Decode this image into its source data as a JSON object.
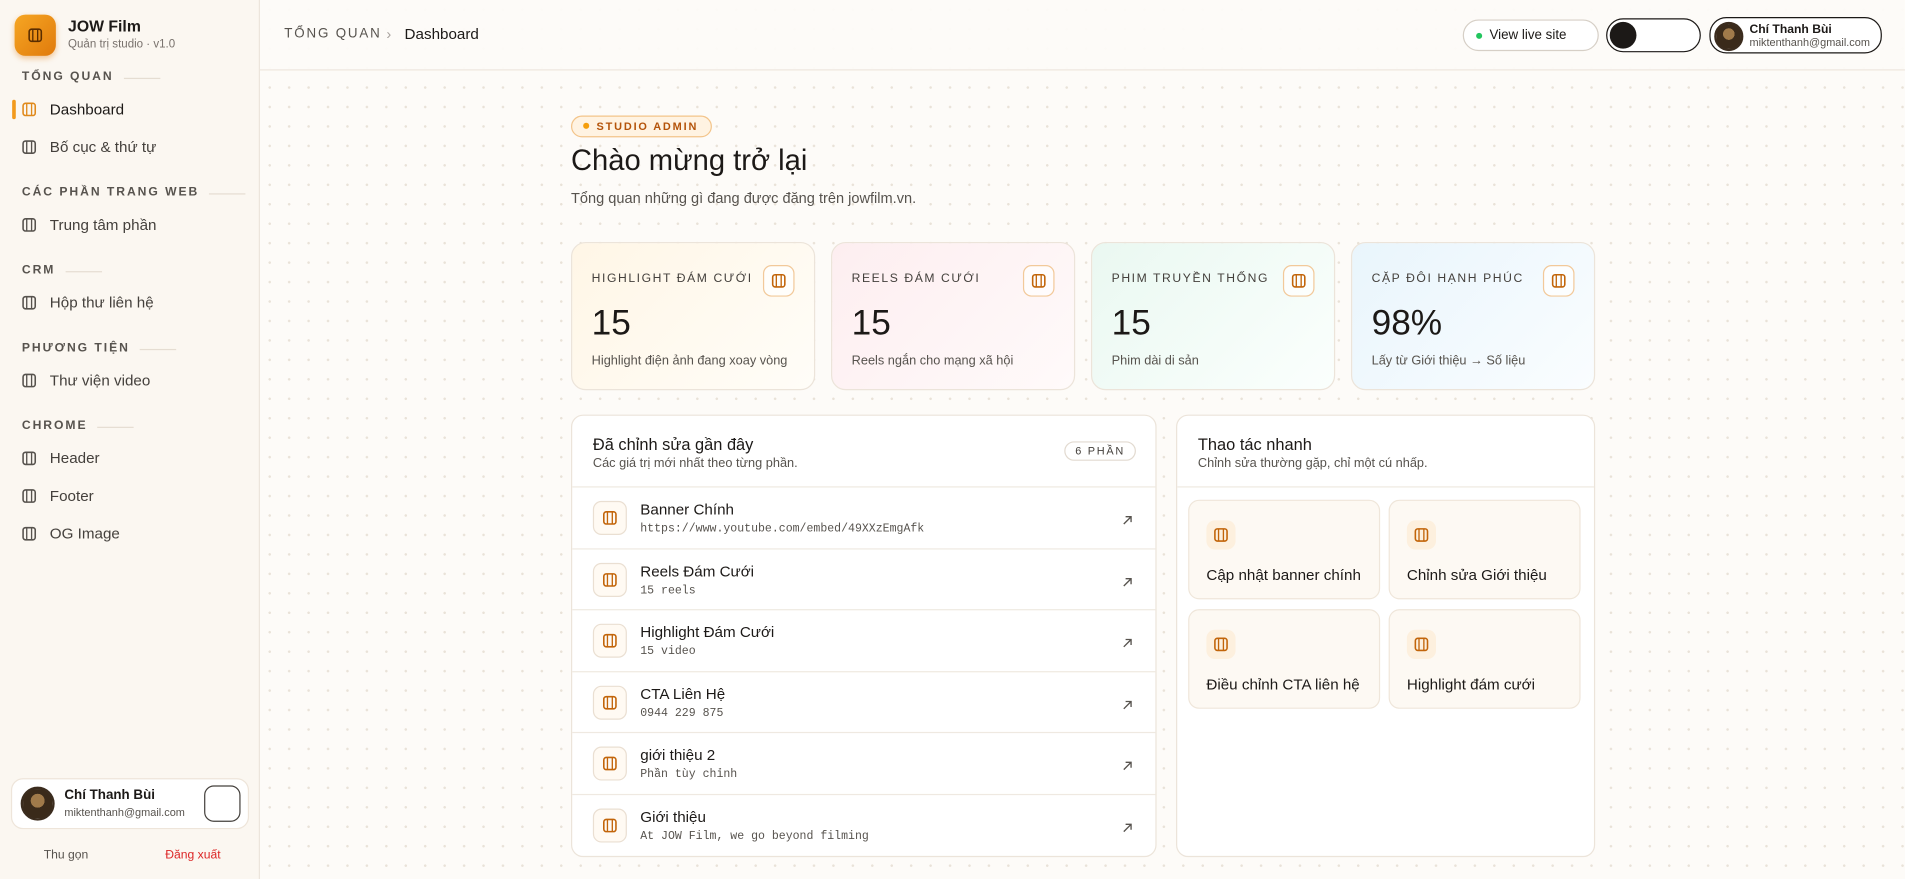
{
  "brand": {
    "name": "JOW Film",
    "subtitle": "Quản trị studio · v1.0"
  },
  "nav": [
    {
      "heading": "TỔNG QUAN",
      "items": [
        "Dashboard",
        "Bố cục & thứ tự"
      ]
    },
    {
      "heading": "CÁC PHẦN TRANG WEB",
      "items": [
        "Trung tâm phần"
      ]
    },
    {
      "heading": "CRM",
      "items": [
        "Hộp thư liên hệ"
      ]
    },
    {
      "heading": "PHƯƠNG TIỆN",
      "items": [
        "Thư viện video"
      ]
    },
    {
      "heading": "CHROME",
      "items": [
        "Header",
        "Footer",
        "OG Image"
      ]
    }
  ],
  "user": {
    "name": "Chí Thanh Bùi",
    "email": "miktenthanh@gmail.com"
  },
  "sidebar_footer": {
    "collapse": "Thu gọn",
    "logout": "Đăng xuất"
  },
  "breadcrumb": [
    "TỔNG QUAN",
    "Dashboard"
  ],
  "topbar": {
    "view_live": "View live site"
  },
  "hero": {
    "badge": "STUDIO ADMIN",
    "title": "Chào mừng trở lại",
    "subtitle": "Tổng quan những gì đang được đăng trên jowfilm.vn."
  },
  "stats": [
    {
      "label": "HIGHLIGHT ĐÁM CƯỚI",
      "value": "15",
      "note": "Highlight điện ảnh đang xoay vòng"
    },
    {
      "label": "REELS ĐÁM CƯỚI",
      "value": "15",
      "note": "Reels ngắn cho mạng xã hội"
    },
    {
      "label": "PHIM TRUYỀN THỐNG",
      "value": "15",
      "note": "Phim dài di sản"
    },
    {
      "label": "CẶP ĐÔI HẠNH PHÚC",
      "value": "98%",
      "note": "Lấy từ Giới thiệu → Số liệu"
    }
  ],
  "recent": {
    "title": "Đã chỉnh sửa gần đây",
    "subtitle": "Các giá trị mới nhất theo từng phần.",
    "badge": "6 PHẦN",
    "items": [
      {
        "title": "Banner Chính",
        "detail": "https://www.youtube.com/embed/49XXzEmgAfk"
      },
      {
        "title": "Reels Đám Cưới",
        "detail": "15 reels"
      },
      {
        "title": "Highlight Đám Cưới",
        "detail": "15 video"
      },
      {
        "title": "CTA Liên Hệ",
        "detail": "0944 229 875"
      },
      {
        "title": "giới thiệu 2",
        "detail": "Phần tùy chỉnh"
      },
      {
        "title": "Giới thiệu",
        "detail": "At JOW Film, we go beyond filming"
      }
    ]
  },
  "quick": {
    "title": "Thao tác nhanh",
    "subtitle": "Chỉnh sửa thường gặp, chỉ một cú nhấp.",
    "items": [
      "Cập nhật banner chính",
      "Chỉnh sửa Giới thiệu",
      "Điều chỉnh CTA liên hệ",
      "Highlight đám cưới"
    ]
  }
}
